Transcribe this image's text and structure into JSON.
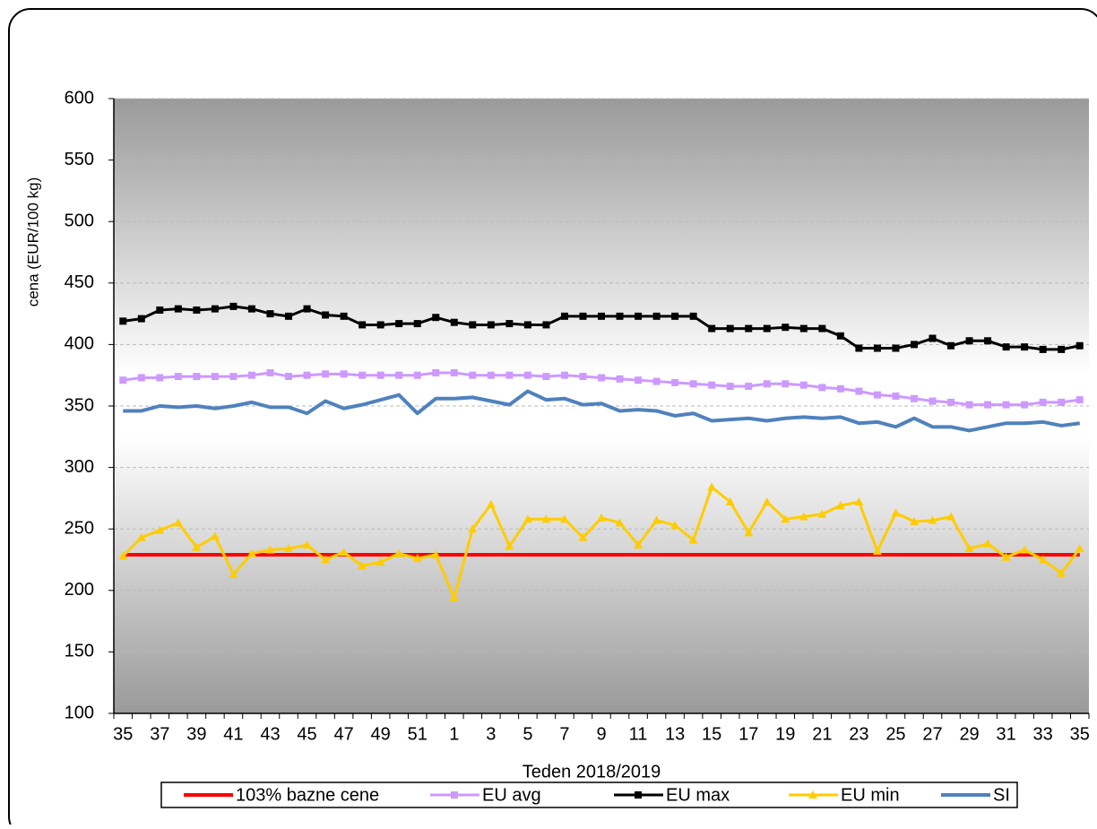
{
  "chart_data": {
    "type": "line",
    "x_label": "Teden  2018/2019",
    "y_label": "cena (EUR/100 kg)",
    "categories": [
      35,
      null,
      37,
      null,
      39,
      null,
      41,
      null,
      43,
      null,
      45,
      null,
      47,
      null,
      49,
      null,
      51,
      null,
      1,
      null,
      3,
      null,
      5,
      null,
      7,
      null,
      9,
      null,
      11,
      null,
      13,
      null,
      15,
      null,
      17,
      null,
      19,
      null,
      21,
      null,
      23,
      null,
      25,
      null,
      27,
      null,
      29,
      null,
      31,
      null,
      33,
      null,
      35
    ],
    "ylim": [
      100,
      600
    ],
    "yticks": [
      100,
      150,
      200,
      250,
      300,
      350,
      400,
      450,
      500,
      550,
      600
    ],
    "grid": true,
    "series": [
      {
        "name": "103% bazne cene",
        "color": "#ff0000",
        "marker": "none",
        "values": [
          229,
          229,
          229,
          229,
          229,
          229,
          229,
          229,
          229,
          229,
          229,
          229,
          229,
          229,
          229,
          229,
          229,
          229,
          229,
          229,
          229,
          229,
          229,
          229,
          229,
          229,
          229,
          229,
          229,
          229,
          229,
          229,
          229,
          229,
          229,
          229,
          229,
          229,
          229,
          229,
          229,
          229,
          229,
          229,
          229,
          229,
          229,
          229,
          229,
          229,
          229,
          229,
          229
        ]
      },
      {
        "name": "EU avg",
        "color": "#cc99ff",
        "marker": "square",
        "values": [
          371,
          373,
          373,
          374,
          374,
          374,
          374,
          375,
          377,
          374,
          375,
          376,
          376,
          375,
          375,
          375,
          375,
          377,
          377,
          375,
          375,
          375,
          375,
          374,
          375,
          374,
          373,
          372,
          371,
          370,
          369,
          368,
          367,
          366,
          366,
          368,
          368,
          367,
          365,
          364,
          362,
          359,
          358,
          356,
          354,
          353,
          351,
          351,
          351,
          351,
          353,
          353,
          355
        ]
      },
      {
        "name": "EU max",
        "color": "#000000",
        "marker": "square",
        "values": [
          419,
          421,
          428,
          429,
          428,
          429,
          431,
          429,
          425,
          423,
          429,
          424,
          423,
          416,
          416,
          417,
          417,
          422,
          418,
          416,
          416,
          417,
          416,
          416,
          423,
          423,
          423,
          423,
          423,
          423,
          423,
          423,
          413,
          413,
          413,
          413,
          414,
          413,
          413,
          407,
          397,
          397,
          397,
          400,
          405,
          399,
          403,
          403,
          398,
          398,
          396,
          396,
          399
        ]
      },
      {
        "name": "EU min",
        "color": "#ffcc00",
        "marker": "triangle",
        "values": [
          228,
          243,
          249,
          255,
          235,
          244,
          213,
          230,
          233,
          234,
          237,
          225,
          231,
          220,
          223,
          230,
          226,
          229,
          194,
          250,
          270,
          236,
          258,
          258,
          258,
          243,
          259,
          255,
          237,
          257,
          253,
          241,
          284,
          272,
          247,
          272,
          258,
          260,
          262,
          269,
          272,
          232,
          263,
          256,
          257,
          260,
          234,
          238,
          227,
          233,
          225,
          214,
          234
        ]
      },
      {
        "name": "SI",
        "color": "#4f81bd",
        "marker": "none",
        "values": [
          346,
          346,
          350,
          349,
          350,
          348,
          350,
          353,
          349,
          349,
          344,
          354,
          348,
          351,
          355,
          359,
          344,
          356,
          356,
          357,
          354,
          351,
          362,
          355,
          356,
          351,
          352,
          346,
          347,
          346,
          342,
          344,
          338,
          339,
          340,
          338,
          340,
          341,
          340,
          341,
          336,
          337,
          333,
          340,
          333,
          333,
          330,
          333,
          336,
          336,
          337,
          334,
          336
        ]
      }
    ]
  }
}
